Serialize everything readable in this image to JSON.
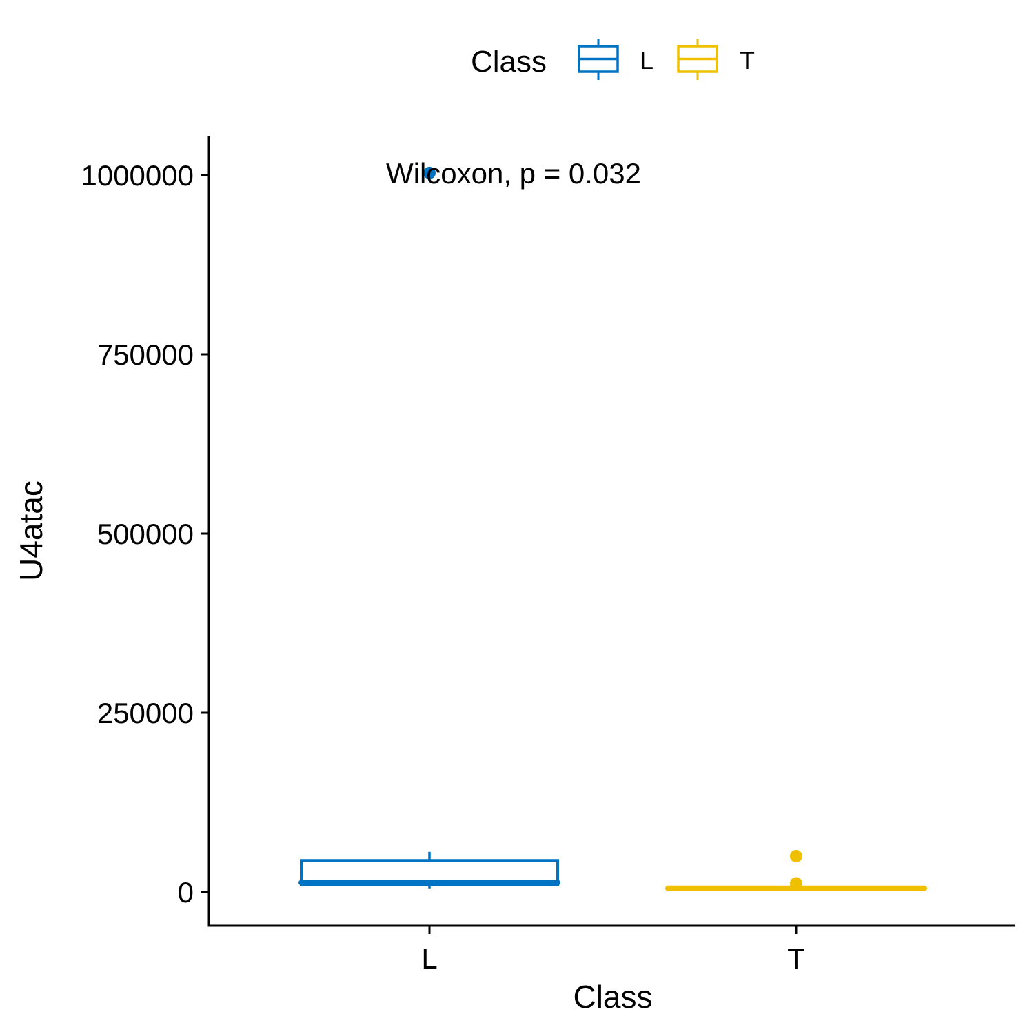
{
  "chart_data": {
    "type": "box",
    "xlabel": "Class",
    "ylabel": "U4atac",
    "categories": [
      "L",
      "T"
    ],
    "ylim": [
      -95000,
      1055000
    ],
    "yticks": [
      0,
      250000,
      500000,
      750000,
      1000000
    ],
    "ytick_labels": [
      "0",
      "250000",
      "500000",
      "750000",
      "1000000"
    ],
    "legend": {
      "title": "Class",
      "position": "top",
      "entries": [
        {
          "label": "L",
          "color": "#0073C2"
        },
        {
          "label": "T",
          "color": "#EFC000"
        }
      ]
    },
    "annotation": "Wilcoxon, p = 0.032",
    "boxes": [
      {
        "category": "L",
        "color": "#0073C2",
        "whisker_low": 5000,
        "q1": 10000,
        "median": 13000,
        "q3": 44000,
        "whisker_high": 56000,
        "outliers": [
          1003000
        ]
      },
      {
        "category": "T",
        "color": "#EFC000",
        "whisker_low": 4000,
        "q1": 5000,
        "median": 5000,
        "q3": 6000,
        "whisker_high": 6000,
        "outliers": [
          12000,
          50000
        ]
      }
    ]
  }
}
